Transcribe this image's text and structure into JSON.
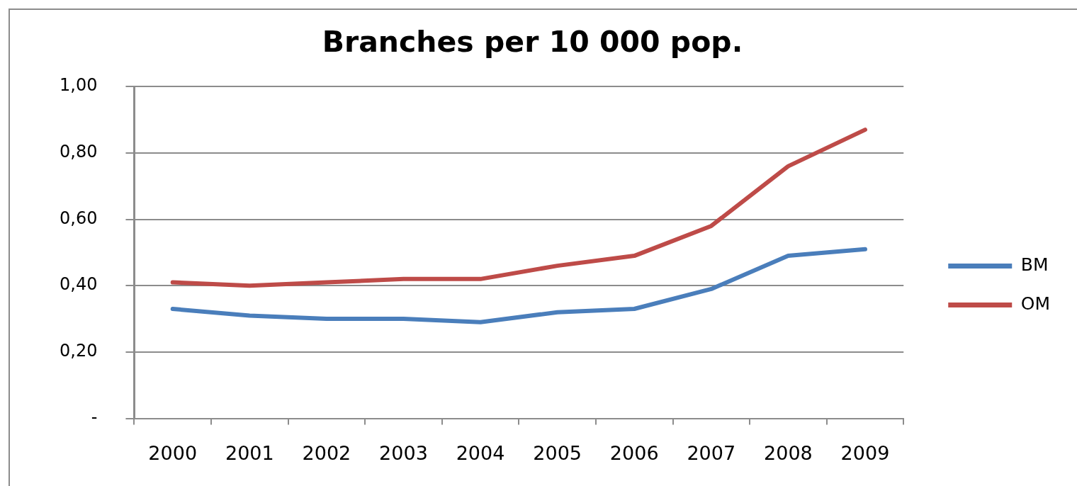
{
  "chart_data": {
    "type": "line",
    "title": "Branches per 10 000 pop.",
    "categories": [
      "2000",
      "2001",
      "2002",
      "2003",
      "2004",
      "2005",
      "2006",
      "2007",
      "2008",
      "2009"
    ],
    "series": [
      {
        "name": "BM",
        "color": "#4a7ebb",
        "values": [
          0.33,
          0.31,
          0.3,
          0.3,
          0.29,
          0.32,
          0.33,
          0.39,
          0.49,
          0.51
        ]
      },
      {
        "name": "OM",
        "color": "#be4b48",
        "values": [
          0.41,
          0.4,
          0.41,
          0.42,
          0.42,
          0.46,
          0.49,
          0.58,
          0.76,
          0.87
        ]
      }
    ],
    "ylim": [
      0,
      1
    ],
    "yticks": [
      {
        "value": 0,
        "label": "-"
      },
      {
        "value": 0.2,
        "label": "0,20"
      },
      {
        "value": 0.4,
        "label": "0,40"
      },
      {
        "value": 0.6,
        "label": "0,60"
      },
      {
        "value": 0.8,
        "label": "0,80"
      },
      {
        "value": 1,
        "label": "1,00"
      }
    ],
    "grid": "y",
    "legend": "right",
    "marker": "none",
    "line_style": "solid"
  }
}
